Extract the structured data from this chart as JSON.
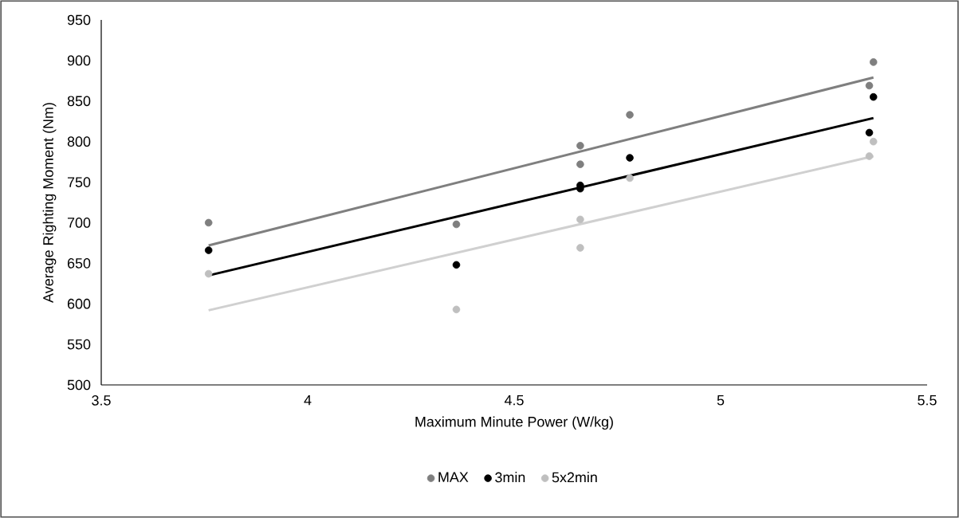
{
  "chart_data": {
    "type": "scatter",
    "xlabel": "Maximum Minute Power (W/kg)",
    "ylabel": "Average Righting Moment (Nm)",
    "xlim": [
      3.5,
      5.5
    ],
    "xticks": [
      3.5,
      4,
      4.5,
      5,
      5.5
    ],
    "ylim": [
      500,
      950
    ],
    "yticks": [
      500,
      550,
      600,
      650,
      700,
      750,
      800,
      850,
      900,
      950
    ],
    "grid": false,
    "legend": "bottom",
    "series": [
      {
        "name": "MAX",
        "marker": "circle",
        "color": "#7f7f7f",
        "x": [
          3.76,
          4.36,
          4.66,
          4.66,
          4.78,
          5.36,
          5.37
        ],
        "values": [
          700,
          698,
          795,
          772,
          833,
          869,
          898
        ]
      },
      {
        "name": "3min",
        "marker": "circle",
        "color": "#000000",
        "x": [
          3.76,
          4.36,
          4.66,
          4.66,
          4.78,
          5.36,
          5.37
        ],
        "values": [
          666,
          648,
          746,
          742,
          780,
          811,
          855
        ]
      },
      {
        "name": "5x2min",
        "marker": "circle",
        "color": "#bfbfbf",
        "x": [
          3.76,
          4.36,
          4.66,
          4.66,
          4.78,
          5.36,
          5.37
        ],
        "values": [
          637,
          593,
          704,
          669,
          755,
          782,
          800
        ]
      },
      {
        "type": "line",
        "marker": "none",
        "color": "#7f7f7f",
        "x": [
          3.76,
          5.37
        ],
        "values": [
          672,
          879
        ]
      },
      {
        "type": "line",
        "marker": "none",
        "color": "#000000",
        "x": [
          3.76,
          5.37
        ],
        "values": [
          635,
          829
        ]
      },
      {
        "type": "line",
        "marker": "none",
        "color": "#d0d0d0",
        "x": [
          3.76,
          5.37
        ],
        "values": [
          592,
          782
        ]
      }
    ]
  }
}
